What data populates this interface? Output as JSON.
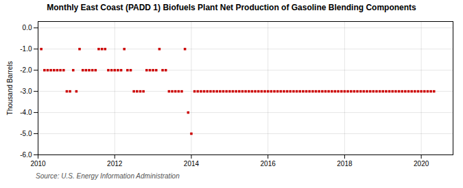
{
  "chart_data": {
    "type": "scatter",
    "title": "Monthly East Coast (PADD 1) Biofuels Plant Net Production of Gasoline Blending Components",
    "ylabel": "Thousand Barrels",
    "source": "Source: U.S. Energy Information Administration",
    "color": "#cc0000",
    "marker": "square",
    "grid": true,
    "xlim": [
      2010,
      2020.83
    ],
    "xticks": [
      2010,
      2012,
      2014,
      2016,
      2018,
      2020
    ],
    "ylim": [
      -6.0,
      0.3
    ],
    "yticks": [
      {
        "value": 0.0,
        "label": "0.0"
      },
      {
        "value": -1.0,
        "label": "-1.0"
      },
      {
        "value": -2.0,
        "label": "-2.0"
      },
      {
        "value": -3.0,
        "label": "-3.0"
      },
      {
        "value": -4.0,
        "label": "-4.0"
      },
      {
        "value": -5.0,
        "label": "-5.0"
      },
      {
        "value": -6.0,
        "label": "-6.0"
      }
    ],
    "x": [
      2010.083,
      2010.167,
      2010.25,
      2010.333,
      2010.417,
      2010.5,
      2010.583,
      2010.667,
      2010.75,
      2010.833,
      2010.917,
      2011.0,
      2011.083,
      2011.167,
      2011.25,
      2011.333,
      2011.417,
      2011.5,
      2011.583,
      2011.667,
      2011.75,
      2011.833,
      2011.917,
      2012.0,
      2012.083,
      2012.167,
      2012.25,
      2012.333,
      2012.417,
      2012.5,
      2012.583,
      2012.667,
      2012.75,
      2012.833,
      2012.917,
      2013.0,
      2013.083,
      2013.167,
      2013.25,
      2013.333,
      2013.417,
      2013.5,
      2013.583,
      2013.667,
      2013.75,
      2013.833,
      2013.917,
      2014.0,
      2014.083,
      2014.167,
      2014.25,
      2014.333,
      2014.417,
      2014.5,
      2014.583,
      2014.667,
      2014.75,
      2014.833,
      2014.917,
      2015.0,
      2015.083,
      2015.167,
      2015.25,
      2015.333,
      2015.417,
      2015.5,
      2015.583,
      2015.667,
      2015.75,
      2015.833,
      2015.917,
      2016.0,
      2016.083,
      2016.167,
      2016.25,
      2016.333,
      2016.417,
      2016.5,
      2016.583,
      2016.667,
      2016.75,
      2016.833,
      2016.917,
      2017.0,
      2017.083,
      2017.167,
      2017.25,
      2017.333,
      2017.417,
      2017.5,
      2017.583,
      2017.667,
      2017.75,
      2017.833,
      2017.917,
      2018.0,
      2018.083,
      2018.167,
      2018.25,
      2018.333,
      2018.417,
      2018.5,
      2018.583,
      2018.667,
      2018.75,
      2018.833,
      2018.917,
      2019.0,
      2019.083,
      2019.167,
      2019.25,
      2019.333,
      2019.417,
      2019.5,
      2019.583,
      2019.667,
      2019.75,
      2019.833,
      2019.917,
      2020.0,
      2020.083,
      2020.167,
      2020.25,
      2020.333
    ],
    "values": [
      -1.0,
      -2.0,
      -2.0,
      -2.0,
      -2.0,
      -2.0,
      -2.0,
      -2.0,
      -3.0,
      -3.0,
      -2.0,
      -3.0,
      -1.0,
      -2.0,
      -2.0,
      -2.0,
      -2.0,
      -2.0,
      -1.0,
      -1.0,
      -1.0,
      -2.0,
      -2.0,
      -2.0,
      -2.0,
      -2.0,
      -1.0,
      -2.0,
      -2.0,
      -3.0,
      -3.0,
      -3.0,
      -3.0,
      -2.0,
      -2.0,
      -2.0,
      -2.0,
      -1.0,
      -2.0,
      -2.0,
      -3.0,
      -3.0,
      -3.0,
      -3.0,
      -3.0,
      -1.0,
      -4.0,
      -5.0,
      -3.0,
      -3.0,
      -3.0,
      -3.0,
      -3.0,
      -3.0,
      -3.0,
      -3.0,
      -3.0,
      -3.0,
      -3.0,
      -3.0,
      -3.0,
      -3.0,
      -3.0,
      -3.0,
      -3.0,
      -3.0,
      -3.0,
      -3.0,
      -3.0,
      -3.0,
      -3.0,
      -3.0,
      -3.0,
      -3.0,
      -3.0,
      -3.0,
      -3.0,
      -3.0,
      -3.0,
      -3.0,
      -3.0,
      -3.0,
      -3.0,
      -3.0,
      -3.0,
      -3.0,
      -3.0,
      -3.0,
      -3.0,
      -3.0,
      -3.0,
      -3.0,
      -3.0,
      -3.0,
      -3.0,
      -3.0,
      -3.0,
      -3.0,
      -3.0,
      -3.0,
      -3.0,
      -3.0,
      -3.0,
      -3.0,
      -3.0,
      -3.0,
      -3.0,
      -3.0,
      -3.0,
      -3.0,
      -3.0,
      -3.0,
      -3.0,
      -3.0,
      -3.0,
      -3.0,
      -3.0,
      -3.0,
      -3.0,
      -3.0,
      -3.0,
      -3.0,
      -3.0,
      -3.0
    ]
  }
}
